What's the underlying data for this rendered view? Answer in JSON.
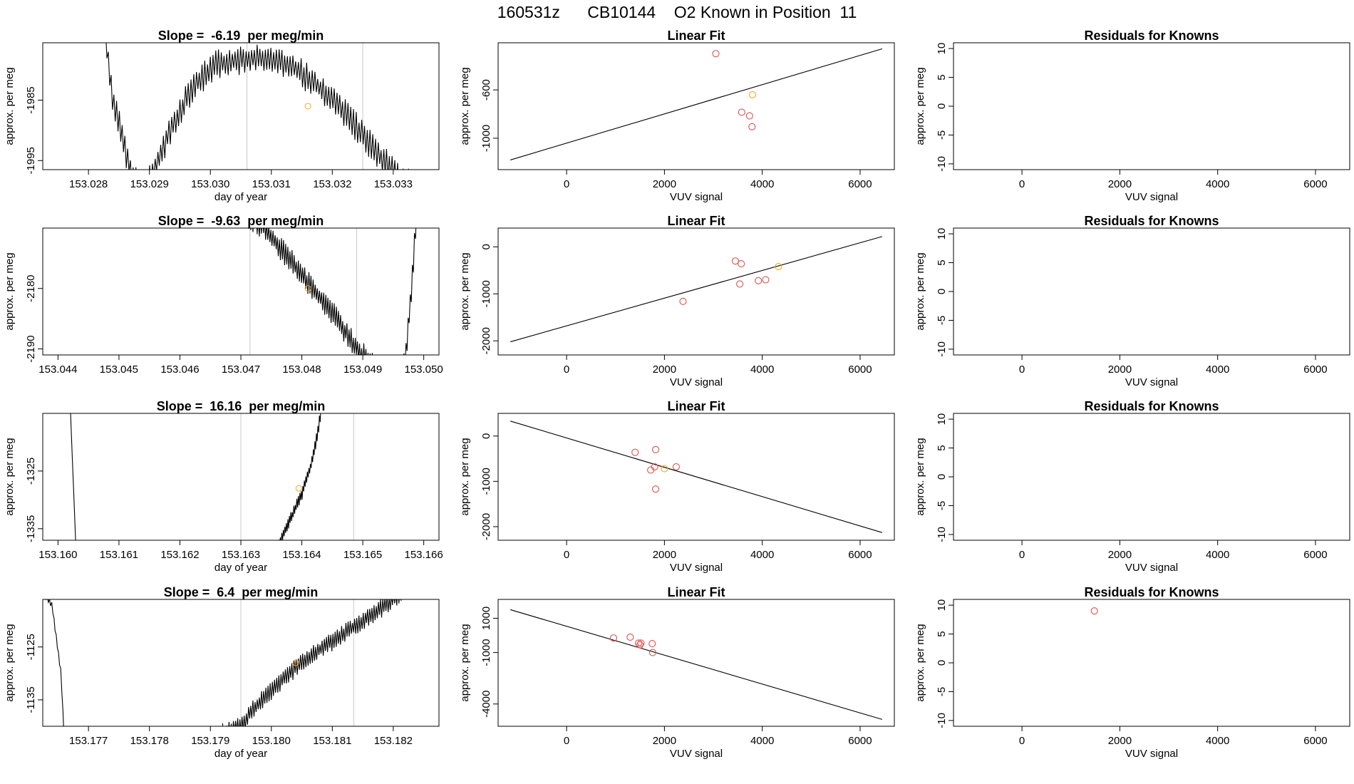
{
  "title": "160531z      CB10144    O2 Known in Position  11",
  "colors": {
    "point": "#d9534f",
    "highlight": "#f5a623",
    "vline": "#c8c8c8"
  },
  "chart_data": [
    {
      "type": "line",
      "panel": "slope",
      "row": 1,
      "title": "Slope =  -6.19  per meg/min",
      "xlabel": "day of year",
      "ylabel": "approx. per meg",
      "xlim": [
        153.02725,
        153.03375
      ],
      "ylim": [
        -1996.5,
        -1975.5
      ],
      "xticks": [
        "153.028",
        "153.029",
        "153.030",
        "153.031",
        "153.032",
        "153.033"
      ],
      "yticks": [
        "-1995",
        "-1985"
      ],
      "vlines": [
        153.0306,
        153.0325
      ],
      "highlight": {
        "x": 153.0316,
        "y": -1986
      },
      "trace": {
        "x_start": 153.0281,
        "x_end": 153.0335,
        "n": 240,
        "knots": [
          [
            153.0281,
            -1960
          ],
          [
            153.0284,
            -1985
          ],
          [
            153.0287,
            -1997
          ],
          [
            153.0288,
            -1999
          ],
          [
            153.029,
            -1998
          ],
          [
            153.0293,
            -1991
          ],
          [
            153.0297,
            -1983
          ],
          [
            153.0301,
            -1979
          ],
          [
            153.0307,
            -1978
          ],
          [
            153.0313,
            -1979
          ],
          [
            153.0318,
            -1983
          ],
          [
            153.0322,
            -1987
          ],
          [
            153.0326,
            -1992
          ],
          [
            153.0331,
            -1998
          ],
          [
            153.0335,
            -2000
          ]
        ],
        "noise": 1.8
      }
    },
    {
      "type": "scatter",
      "panel": "fit",
      "row": 1,
      "title": "Linear Fit",
      "xlabel": "VUV signal",
      "ylabel": "approx. per meg",
      "xlim": [
        -1400,
        6700
      ],
      "ylim": [
        -1260,
        -210
      ],
      "xticks": [
        "0",
        "2000",
        "4000",
        "6000"
      ],
      "yticks": [
        "-600",
        "-1000"
      ],
      "line": [
        [
          -1150,
          -1180
        ],
        [
          6450,
          -260
        ]
      ],
      "points": [
        [
          3050,
          -300
        ],
        [
          3580,
          -785
        ],
        [
          3740,
          -815
        ],
        [
          3790,
          -905
        ]
      ],
      "highlight_points": [
        [
          3800,
          -640
        ]
      ]
    },
    {
      "type": "scatter",
      "panel": "resid",
      "row": 1,
      "title": "Residuals for Knowns",
      "xlabel": "VUV signal",
      "ylabel": "approx. per meg",
      "xlim": [
        -1400,
        6700
      ],
      "ylim": [
        -11,
        11
      ],
      "xticks": [
        "0",
        "2000",
        "4000",
        "6000"
      ],
      "yticks": [
        "10",
        "5",
        "0",
        "-5",
        "-10"
      ],
      "points": []
    },
    {
      "type": "line",
      "panel": "slope",
      "row": 2,
      "title": "Slope =  -9.63  per meg/min",
      "xlabel": "",
      "ylabel": "approx. per meg",
      "xlim": [
        153.04375,
        153.05025
      ],
      "ylim": [
        -2191,
        -2170
      ],
      "xticks": [
        "153.044",
        "153.045",
        "153.046",
        "153.047",
        "153.048",
        "153.049",
        "153.050"
      ],
      "yticks": [
        "-2180",
        "-2190"
      ],
      "vlines": [
        153.04715,
        153.0489
      ],
      "highlight": {
        "x": 153.0481,
        "y": -2180
      },
      "trace": {
        "x_start": 153.0468,
        "x_end": 153.0499,
        "n": 180,
        "knots": [
          [
            153.0468,
            -2160
          ],
          [
            153.0471,
            -2168
          ],
          [
            153.0474,
            -2170
          ],
          [
            153.0477,
            -2174
          ],
          [
            153.0481,
            -2179
          ],
          [
            153.0485,
            -2184
          ],
          [
            153.0489,
            -2190
          ],
          [
            153.0492,
            -2193
          ],
          [
            153.0496,
            -2194
          ],
          [
            153.0497,
            -2192
          ],
          [
            153.0498,
            -2180
          ],
          [
            153.0499,
            -2165
          ]
        ],
        "noise": 1.5
      }
    },
    {
      "type": "scatter",
      "panel": "fit",
      "row": 2,
      "title": "Linear Fit",
      "xlabel": "VUV signal",
      "ylabel": "approx. per meg",
      "xlim": [
        -1400,
        6700
      ],
      "ylim": [
        -2300,
        400
      ],
      "xticks": [
        "0",
        "2000",
        "4000",
        "6000"
      ],
      "yticks": [
        "0",
        "-1000",
        "-2000"
      ],
      "line": [
        [
          -1150,
          -2020
        ],
        [
          6450,
          220
        ]
      ],
      "points": [
        [
          3450,
          -300
        ],
        [
          3570,
          -360
        ],
        [
          3540,
          -790
        ],
        [
          3920,
          -720
        ],
        [
          4070,
          -700
        ],
        [
          2380,
          -1160
        ]
      ],
      "highlight_points": [
        [
          4330,
          -420
        ]
      ]
    },
    {
      "type": "scatter",
      "panel": "resid",
      "row": 2,
      "title": "Residuals for Knowns",
      "xlabel": "VUV signal",
      "ylabel": "approx. per meg",
      "xlim": [
        -1400,
        6700
      ],
      "ylim": [
        -11,
        11
      ],
      "xticks": [
        "0",
        "2000",
        "4000",
        "6000"
      ],
      "yticks": [
        "10",
        "5",
        "0",
        "-5",
        "-10"
      ],
      "points": []
    },
    {
      "type": "line",
      "panel": "slope",
      "row": 3,
      "title": "Slope =  16.16  per meg/min",
      "xlabel": "day of year",
      "ylabel": "approx. per meg",
      "xlim": [
        153.15975,
        153.16625
      ],
      "ylim": [
        -1337,
        -1315
      ],
      "xticks": [
        "153.160",
        "153.161",
        "153.162",
        "153.163",
        "153.164",
        "153.165",
        "153.166"
      ],
      "yticks": [
        "-1325",
        "-1335"
      ],
      "vlines": [
        153.163,
        153.16485
      ],
      "highlight": {
        "x": 153.16395,
        "y": -1328
      },
      "trace_segments": [
        {
          "x_start": 153.16015,
          "x_end": 153.1603,
          "n": 8,
          "knots": [
            [
              153.16015,
              -1300
            ],
            [
              153.1603,
              -1340
            ]
          ],
          "noise": 0
        },
        {
          "x_start": 153.1635,
          "x_end": 153.16435,
          "n": 70,
          "knots": [
            [
              153.1635,
              -1340
            ],
            [
              153.1637,
              -1336
            ],
            [
              153.164,
              -1329
            ],
            [
              153.16415,
              -1324
            ],
            [
              153.16425,
              -1319
            ],
            [
              153.16435,
              -1312
            ]
          ],
          "noise": 0.8
        }
      ]
    },
    {
      "type": "scatter",
      "panel": "fit",
      "row": 3,
      "title": "Linear Fit",
      "xlabel": "VUV signal",
      "ylabel": "approx. per meg",
      "xlim": [
        -1400,
        6700
      ],
      "ylim": [
        -2300,
        500
      ],
      "xticks": [
        "0",
        "2000",
        "4000",
        "6000"
      ],
      "yticks": [
        "0",
        "-1000",
        "-2000"
      ],
      "line": [
        [
          -1150,
          330
        ],
        [
          6450,
          -2130
        ]
      ],
      "points": [
        [
          1400,
          -360
        ],
        [
          1820,
          -300
        ],
        [
          1720,
          -750
        ],
        [
          1800,
          -680
        ],
        [
          2240,
          -680
        ],
        [
          1820,
          -1170
        ]
      ],
      "highlight_points": [
        [
          2000,
          -720
        ]
      ]
    },
    {
      "type": "scatter",
      "panel": "resid",
      "row": 3,
      "title": "Residuals for Knowns",
      "xlabel": "VUV signal",
      "ylabel": "approx. per meg",
      "xlim": [
        -1400,
        6700
      ],
      "ylim": [
        -11,
        11
      ],
      "xticks": [
        "0",
        "2000",
        "4000",
        "6000"
      ],
      "yticks": [
        "10",
        "5",
        "0",
        "-5",
        "-10"
      ],
      "points": []
    },
    {
      "type": "line",
      "panel": "slope",
      "row": 4,
      "title": "Slope =  6.4  per meg/min",
      "xlabel": "day of year",
      "ylabel": "approx. per meg",
      "xlim": [
        153.17625,
        153.18275
      ],
      "ylim": [
        -1140,
        -1116
      ],
      "xticks": [
        "153.177",
        "153.178",
        "153.179",
        "153.180",
        "153.181",
        "153.182"
      ],
      "yticks": [
        "-1125",
        "-1135"
      ],
      "vlines": [
        153.1795,
        153.18135
      ],
      "highlight": {
        "x": 153.1804,
        "y": -1128
      },
      "trace_segments": [
        {
          "x_start": 153.17625,
          "x_end": 153.1766,
          "n": 20,
          "knots": [
            [
              153.17625,
              -1115
            ],
            [
              153.1764,
              -1117
            ],
            [
              153.17655,
              -1130
            ],
            [
              153.1766,
              -1142
            ]
          ],
          "noise": 0.4
        },
        {
          "x_start": 153.1792,
          "x_end": 153.1822,
          "n": 170,
          "knots": [
            [
              153.1792,
              -1141
            ],
            [
              153.1795,
              -1140
            ],
            [
              153.17975,
              -1136
            ],
            [
              153.1802,
              -1131
            ],
            [
              153.1806,
              -1127
            ],
            [
              153.181,
              -1124
            ],
            [
              153.1815,
              -1120
            ],
            [
              153.1819,
              -1117
            ],
            [
              153.1822,
              -1114
            ]
          ],
          "noise": 1.3
        }
      ]
    },
    {
      "type": "scatter",
      "panel": "fit",
      "row": 4,
      "title": "Linear Fit",
      "xlabel": "VUV signal",
      "ylabel": "approx. per meg",
      "xlim": [
        -1400,
        6700
      ],
      "ylim": [
        -5300,
        2100
      ],
      "xticks": [
        "0",
        "2000",
        "4000",
        "6000"
      ],
      "yticks": [
        "1000",
        "-1000",
        "-4000"
      ],
      "line": [
        [
          -1150,
          1500
        ],
        [
          6450,
          -4900
        ]
      ],
      "points": [
        [
          960,
          -150
        ],
        [
          1300,
          -100
        ],
        [
          1470,
          -450
        ],
        [
          1500,
          -550
        ],
        [
          1750,
          -480
        ],
        [
          1760,
          -1000
        ],
        [
          1520,
          -450
        ]
      ],
      "highlight_points": []
    },
    {
      "type": "scatter",
      "panel": "resid",
      "row": 4,
      "title": "Residuals for Knowns",
      "xlabel": "VUV signal",
      "ylabel": "approx. per meg",
      "xlim": [
        -1400,
        6700
      ],
      "ylim": [
        -11,
        11
      ],
      "xticks": [
        "0",
        "2000",
        "4000",
        "6000"
      ],
      "yticks": [
        "10",
        "5",
        "0",
        "-5",
        "-10"
      ],
      "points": [
        [
          1480,
          9
        ]
      ]
    }
  ]
}
